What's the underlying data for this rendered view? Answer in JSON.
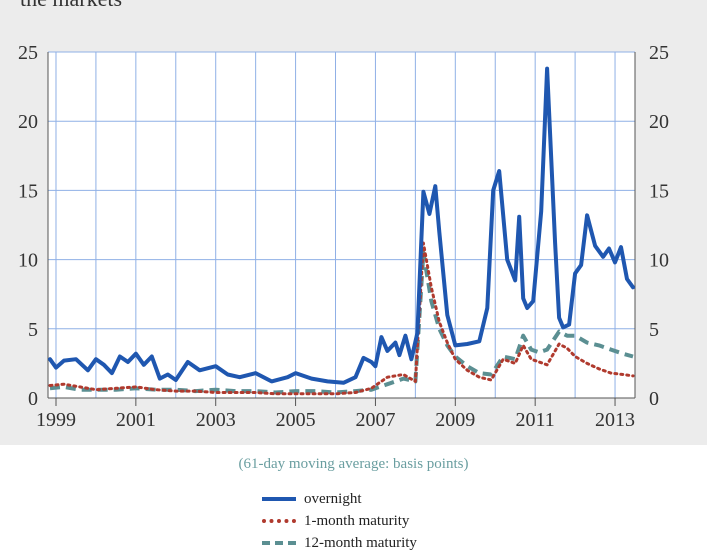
{
  "top_fragment": "the markets",
  "caption": "(61-day moving average: basis points)",
  "colors": {
    "overnight": "#1f57b0",
    "one_month": "#b03a2e",
    "twelve_month": "#5b8f92",
    "grid": "#8fb0e6",
    "panel": "#ececec"
  },
  "legend": [
    "overnight",
    "1-month maturity",
    "12-month maturity"
  ],
  "chart_data": {
    "type": "line",
    "title": "",
    "xlabel": "",
    "ylabel": "",
    "xlim": [
      1998.8,
      2013.5
    ],
    "ylim": [
      0,
      25
    ],
    "yticks": [
      "0",
      "5",
      "10",
      "15",
      "20",
      "25"
    ],
    "xticks": [
      "1999",
      "2001",
      "2003",
      "2005",
      "2007",
      "2009",
      "2011",
      "2013"
    ],
    "grid": true,
    "legend_position": "bottom",
    "series": [
      {
        "name": "overnight",
        "x": [
          1998.85,
          1999.0,
          1999.2,
          1999.5,
          1999.8,
          2000.0,
          2000.2,
          2000.4,
          2000.6,
          2000.8,
          2001.0,
          2001.2,
          2001.4,
          2001.6,
          2001.8,
          2002.0,
          2002.3,
          2002.6,
          2003.0,
          2003.3,
          2003.6,
          2004.0,
          2004.4,
          2004.8,
          2005.0,
          2005.4,
          2005.8,
          2006.2,
          2006.5,
          2006.7,
          2006.9,
          2007.0,
          2007.15,
          2007.3,
          2007.5,
          2007.6,
          2007.75,
          2007.9,
          2008.05,
          2008.2,
          2008.35,
          2008.5,
          2008.6,
          2008.8,
          2009.0,
          2009.3,
          2009.6,
          2009.8,
          2009.95,
          2010.1,
          2010.3,
          2010.5,
          2010.6,
          2010.7,
          2010.8,
          2010.95,
          2011.15,
          2011.3,
          2011.5,
          2011.6,
          2011.7,
          2011.85,
          2012.0,
          2012.15,
          2012.3,
          2012.5,
          2012.7,
          2012.85,
          2013.0,
          2013.15,
          2013.3,
          2013.45
        ],
        "values": [
          2.8,
          2.2,
          2.7,
          2.8,
          2.0,
          2.8,
          2.4,
          1.8,
          3.0,
          2.6,
          3.2,
          2.4,
          3.0,
          1.4,
          1.7,
          1.3,
          2.6,
          2.0,
          2.3,
          1.7,
          1.5,
          1.8,
          1.2,
          1.5,
          1.8,
          1.4,
          1.2,
          1.1,
          1.5,
          2.9,
          2.6,
          2.3,
          4.4,
          3.4,
          4.0,
          3.1,
          4.5,
          2.8,
          4.7,
          14.9,
          13.3,
          15.3,
          12.0,
          6.0,
          3.8,
          3.9,
          4.1,
          6.5,
          15.0,
          16.4,
          10.0,
          8.5,
          13.1,
          7.2,
          6.5,
          7.0,
          13.5,
          23.8,
          11.2,
          5.8,
          5.1,
          5.3,
          9.0,
          9.6,
          13.2,
          11.0,
          10.2,
          10.8,
          9.8,
          10.9,
          8.6,
          8.0
        ]
      },
      {
        "name": "1-month maturity",
        "x": [
          1998.85,
          1999.2,
          1999.6,
          2000.0,
          2000.5,
          2001.0,
          2001.5,
          2002.0,
          2002.5,
          2003.0,
          2003.5,
          2004.0,
          2004.5,
          2005.0,
          2005.5,
          2006.0,
          2006.5,
          2006.9,
          2007.3,
          2007.7,
          2008.0,
          2008.2,
          2008.4,
          2008.6,
          2008.8,
          2009.0,
          2009.3,
          2009.6,
          2009.9,
          2010.2,
          2010.5,
          2010.7,
          2010.9,
          2011.1,
          2011.3,
          2011.6,
          2011.8,
          2012.0,
          2012.3,
          2012.6,
          2012.9,
          2013.2,
          2013.45
        ],
        "values": [
          0.9,
          1.0,
          0.8,
          0.6,
          0.7,
          0.8,
          0.6,
          0.5,
          0.5,
          0.4,
          0.4,
          0.4,
          0.3,
          0.3,
          0.3,
          0.3,
          0.4,
          0.7,
          1.5,
          1.7,
          1.2,
          11.2,
          8.0,
          5.5,
          4.0,
          2.8,
          2.0,
          1.5,
          1.3,
          2.8,
          2.5,
          3.8,
          2.8,
          2.6,
          2.4,
          3.9,
          3.6,
          3.0,
          2.5,
          2.1,
          1.8,
          1.7,
          1.6
        ]
      },
      {
        "name": "12-month maturity",
        "x": [
          1998.85,
          1999.2,
          1999.6,
          2000.0,
          2000.5,
          2001.0,
          2001.5,
          2002.0,
          2002.5,
          2003.0,
          2003.5,
          2004.0,
          2004.5,
          2005.0,
          2005.5,
          2006.0,
          2006.5,
          2006.9,
          2007.3,
          2007.7,
          2008.0,
          2008.2,
          2008.4,
          2008.6,
          2008.8,
          2009.0,
          2009.3,
          2009.6,
          2009.9,
          2010.2,
          2010.5,
          2010.7,
          2010.9,
          2011.1,
          2011.3,
          2011.6,
          2011.8,
          2012.0,
          2012.3,
          2012.6,
          2012.9,
          2013.2,
          2013.45
        ],
        "values": [
          0.7,
          0.8,
          0.6,
          0.6,
          0.6,
          0.7,
          0.6,
          0.6,
          0.5,
          0.6,
          0.5,
          0.5,
          0.4,
          0.5,
          0.5,
          0.4,
          0.5,
          0.6,
          1.0,
          1.4,
          1.2,
          10.5,
          7.0,
          5.0,
          3.8,
          3.0,
          2.3,
          1.8,
          1.7,
          3.0,
          2.8,
          4.5,
          3.5,
          3.3,
          3.5,
          4.8,
          4.5,
          4.5,
          4.0,
          3.8,
          3.5,
          3.2,
          3.0
        ]
      }
    ]
  }
}
